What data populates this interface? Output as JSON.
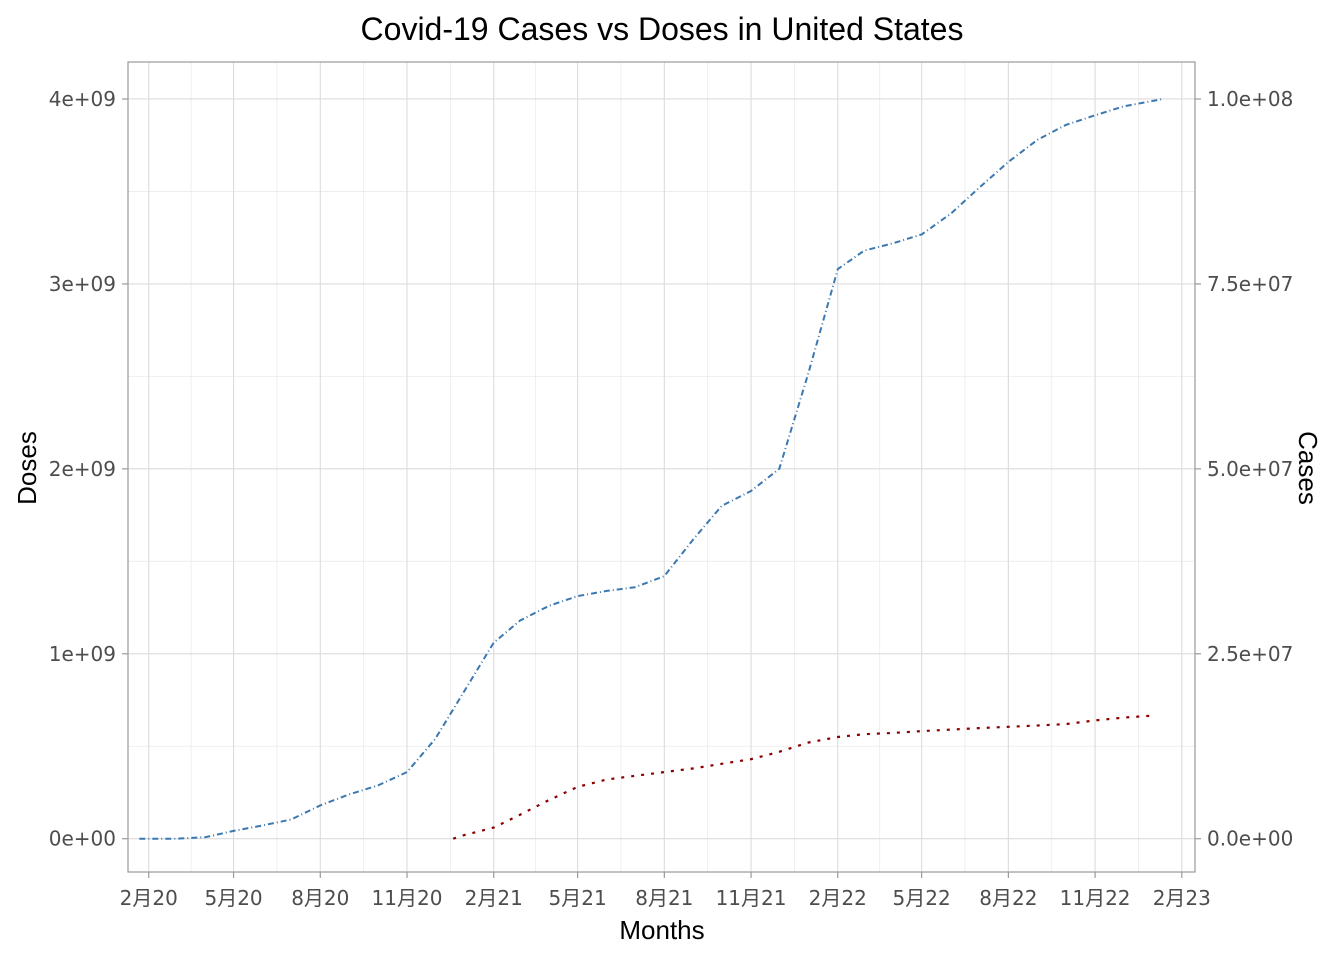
{
  "chart_data": {
    "type": "line",
    "title": "Covid-19 Cases vs Doses in United States",
    "xlabel": "Months",
    "ylabel": "Doses",
    "y2label": "Cases",
    "xlim": [
      "2020-01-10",
      "2023-02-15"
    ],
    "ylim": [
      -180000000,
      4200000000
    ],
    "y2lim": [
      -4500000,
      105000000
    ],
    "x_ticks": [
      {
        "date": "2020-02-01",
        "label": "2月20"
      },
      {
        "date": "2020-05-01",
        "label": "5月20"
      },
      {
        "date": "2020-08-01",
        "label": "8月20"
      },
      {
        "date": "2020-11-01",
        "label": "11月20"
      },
      {
        "date": "2021-02-01",
        "label": "2月21"
      },
      {
        "date": "2021-05-01",
        "label": "5月21"
      },
      {
        "date": "2021-08-01",
        "label": "8月21"
      },
      {
        "date": "2021-11-01",
        "label": "11月21"
      },
      {
        "date": "2022-02-01",
        "label": "2月22"
      },
      {
        "date": "2022-05-01",
        "label": "5月22"
      },
      {
        "date": "2022-08-01",
        "label": "8月22"
      },
      {
        "date": "2022-11-01",
        "label": "11月22"
      },
      {
        "date": "2023-02-01",
        "label": "2月23"
      }
    ],
    "y_ticks": [
      {
        "value": 0,
        "label": "0e+00"
      },
      {
        "value": 1000000000,
        "label": "1e+09"
      },
      {
        "value": 2000000000,
        "label": "2e+09"
      },
      {
        "value": 3000000000,
        "label": "3e+09"
      },
      {
        "value": 4000000000,
        "label": "4e+09"
      }
    ],
    "y2_ticks": [
      {
        "value": 0,
        "label": "0.0e+00"
      },
      {
        "value": 25000000,
        "label": "2.5e+07"
      },
      {
        "value": 50000000,
        "label": "5.0e+07"
      },
      {
        "value": 75000000,
        "label": "7.5e+07"
      },
      {
        "value": 100000000,
        "label": "1.0e+08"
      }
    ],
    "grid": true,
    "legend": "none",
    "series": [
      {
        "color": "#3b78b0",
        "axis": "y2",
        "style": "dashed",
        "points": [
          [
            "2020-01-22",
            0
          ],
          [
            "2020-03-01",
            0
          ],
          [
            "2020-04-01",
            200000
          ],
          [
            "2020-05-01",
            1050000
          ],
          [
            "2020-06-01",
            1800000
          ],
          [
            "2020-07-01",
            2600000
          ],
          [
            "2020-08-01",
            4500000
          ],
          [
            "2020-09-01",
            6000000
          ],
          [
            "2020-10-01",
            7200000
          ],
          [
            "2020-11-01",
            9000000
          ],
          [
            "2020-12-01",
            13500000
          ],
          [
            "2021-01-01",
            20000000
          ],
          [
            "2021-02-01",
            26500000
          ],
          [
            "2021-03-01",
            29500000
          ],
          [
            "2021-04-01",
            31500000
          ],
          [
            "2021-05-01",
            32800000
          ],
          [
            "2021-06-01",
            33500000
          ],
          [
            "2021-07-01",
            34000000
          ],
          [
            "2021-08-01",
            35500000
          ],
          [
            "2021-09-01",
            40500000
          ],
          [
            "2021-10-01",
            45000000
          ],
          [
            "2021-11-01",
            47000000
          ],
          [
            "2021-12-01",
            50000000
          ],
          [
            "2022-01-01",
            63000000
          ],
          [
            "2022-02-01",
            77000000
          ],
          [
            "2022-03-01",
            79500000
          ],
          [
            "2022-04-01",
            80500000
          ],
          [
            "2022-05-01",
            81700000
          ],
          [
            "2022-06-01",
            84500000
          ],
          [
            "2022-07-01",
            88000000
          ],
          [
            "2022-08-01",
            91500000
          ],
          [
            "2022-09-01",
            94500000
          ],
          [
            "2022-10-01",
            96500000
          ],
          [
            "2022-11-01",
            97800000
          ],
          [
            "2022-12-01",
            99000000
          ],
          [
            "2023-01-12",
            100000000
          ]
        ]
      },
      {
        "color": "#8b0000",
        "axis": "y",
        "style": "dotted",
        "points": [
          [
            "2020-12-20",
            0
          ],
          [
            "2021-01-01",
            20000000
          ],
          [
            "2021-02-01",
            60000000
          ],
          [
            "2021-03-01",
            130000000
          ],
          [
            "2021-04-01",
            210000000
          ],
          [
            "2021-05-01",
            280000000
          ],
          [
            "2021-06-01",
            320000000
          ],
          [
            "2021-07-01",
            340000000
          ],
          [
            "2021-08-01",
            360000000
          ],
          [
            "2021-09-01",
            380000000
          ],
          [
            "2021-10-01",
            405000000
          ],
          [
            "2021-11-01",
            430000000
          ],
          [
            "2021-12-01",
            470000000
          ],
          [
            "2022-01-01",
            520000000
          ],
          [
            "2022-02-01",
            550000000
          ],
          [
            "2022-03-01",
            565000000
          ],
          [
            "2022-04-01",
            572000000
          ],
          [
            "2022-05-01",
            582000000
          ],
          [
            "2022-06-01",
            590000000
          ],
          [
            "2022-07-01",
            598000000
          ],
          [
            "2022-08-01",
            605000000
          ],
          [
            "2022-09-01",
            612000000
          ],
          [
            "2022-10-01",
            620000000
          ],
          [
            "2022-11-01",
            640000000
          ],
          [
            "2022-12-01",
            655000000
          ],
          [
            "2022-12-31",
            665000000
          ]
        ]
      }
    ]
  }
}
